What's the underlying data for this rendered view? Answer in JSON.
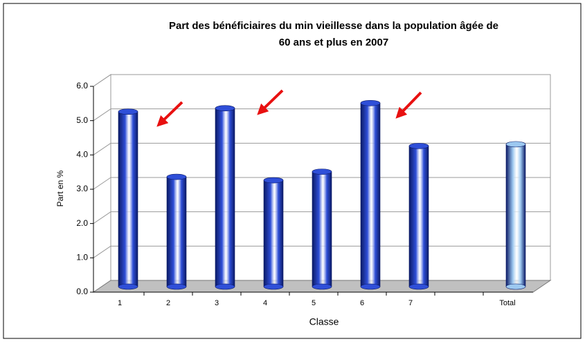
{
  "chart_data": {
    "type": "bar3d",
    "title": [
      "Part des bénéficiaires du min vieillesse dans la population âgée de",
      "60 ans et plus en 2007"
    ],
    "x_label": "Classe",
    "y_label": "Part en %",
    "categories": [
      "1",
      "2",
      "3",
      "4",
      "5",
      "6",
      "7",
      null,
      "Total"
    ],
    "values": [
      5.1,
      3.2,
      5.2,
      3.1,
      3.35,
      5.35,
      4.1,
      null,
      4.15
    ],
    "colors": [
      "#2f4fd8",
      "#2f4fd8",
      "#2f4fd8",
      "#2f4fd8",
      "#2f4fd8",
      "#2f4fd8",
      "#2f4fd8",
      "#2f4fd8",
      "#9cc8f0"
    ],
    "ylim": [
      0,
      6
    ],
    "yticks": [
      {
        "value": 0,
        "label": "0.0"
      },
      {
        "value": 1,
        "label": "1.0"
      },
      {
        "value": 2,
        "label": "2.0"
      },
      {
        "value": 3,
        "label": "3.0"
      },
      {
        "value": 4,
        "label": "4.0"
      },
      {
        "value": 5,
        "label": "5.0"
      },
      {
        "value": 6,
        "label": "6.0"
      }
    ],
    "grid": true
  }
}
